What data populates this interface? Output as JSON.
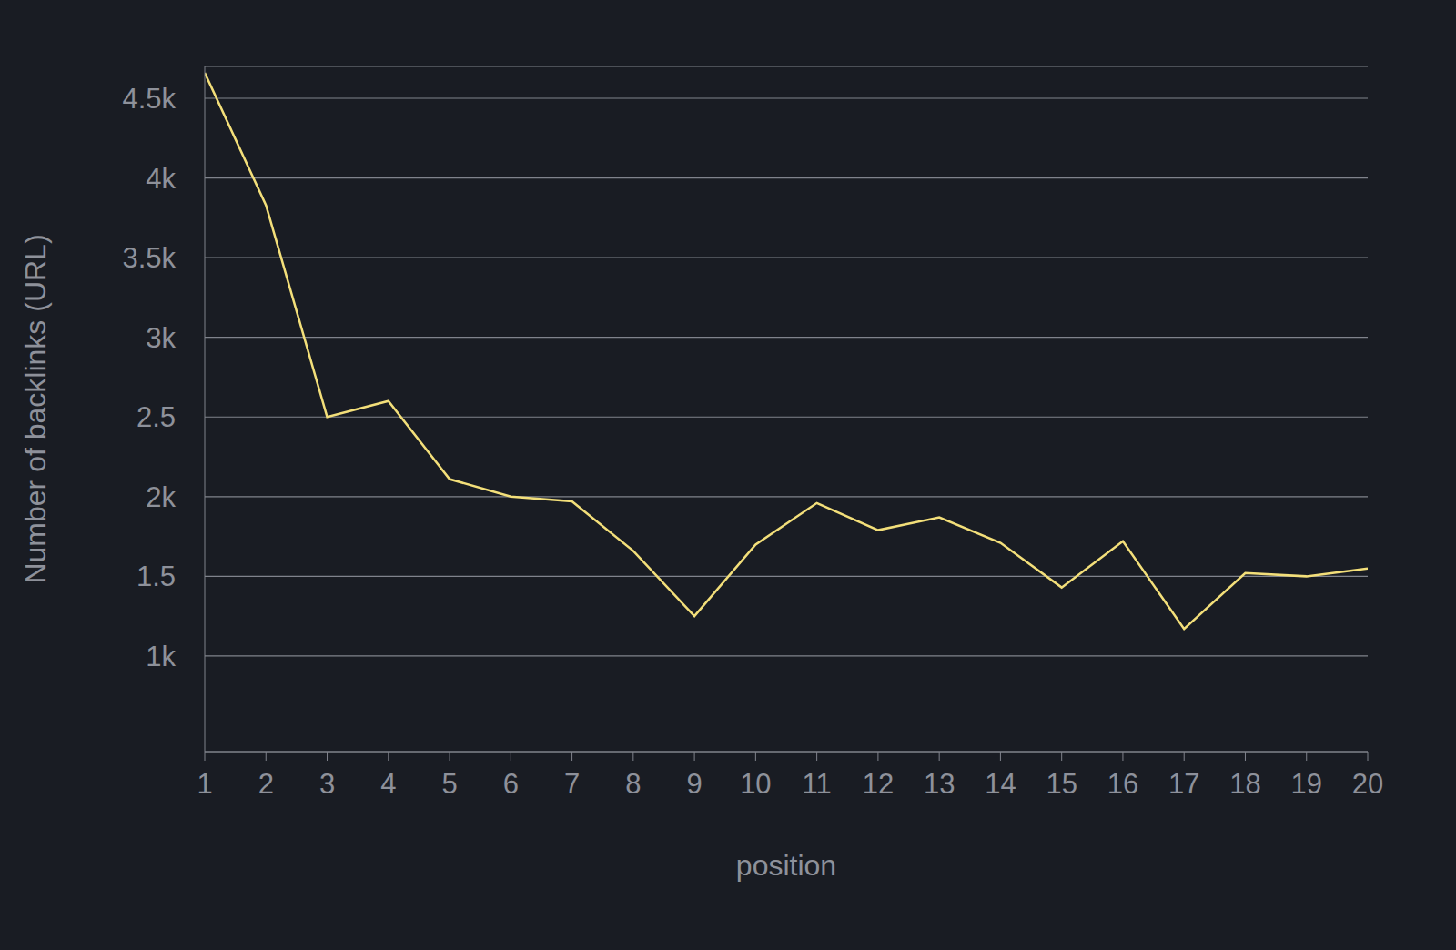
{
  "chart_data": {
    "type": "line",
    "x_label": "position",
    "y_label": "Number of backlinks (URL)",
    "x": [
      1,
      2,
      3,
      4,
      5,
      6,
      7,
      8,
      9,
      10,
      11,
      12,
      13,
      14,
      15,
      16,
      17,
      18,
      19,
      20
    ],
    "series": [
      {
        "name": "backlinks",
        "color": "#f3df7a",
        "values": [
          4660,
          3830,
          2500,
          2600,
          2110,
          2000,
          1970,
          1660,
          1250,
          1700,
          1960,
          1790,
          1870,
          1710,
          1430,
          1720,
          1170,
          1520,
          1500,
          1550
        ],
        "marker": "none"
      }
    ],
    "xlim": [
      1,
      20
    ],
    "xticks": [
      1,
      2,
      3,
      4,
      5,
      6,
      7,
      8,
      9,
      10,
      11,
      12,
      13,
      14,
      15,
      16,
      17,
      18,
      19,
      20
    ],
    "ylim": [
      400,
      4700
    ],
    "yticks": [
      {
        "value": 1000,
        "label": "1k"
      },
      {
        "value": 1500,
        "label": "1.5"
      },
      {
        "value": 2000,
        "label": "2k"
      },
      {
        "value": 2500,
        "label": "2.5"
      },
      {
        "value": 3000,
        "label": "3k"
      },
      {
        "value": 3500,
        "label": "3.5k"
      },
      {
        "value": 4000,
        "label": "4k"
      },
      {
        "value": 4500,
        "label": "4.5k"
      }
    ],
    "grid": true
  }
}
